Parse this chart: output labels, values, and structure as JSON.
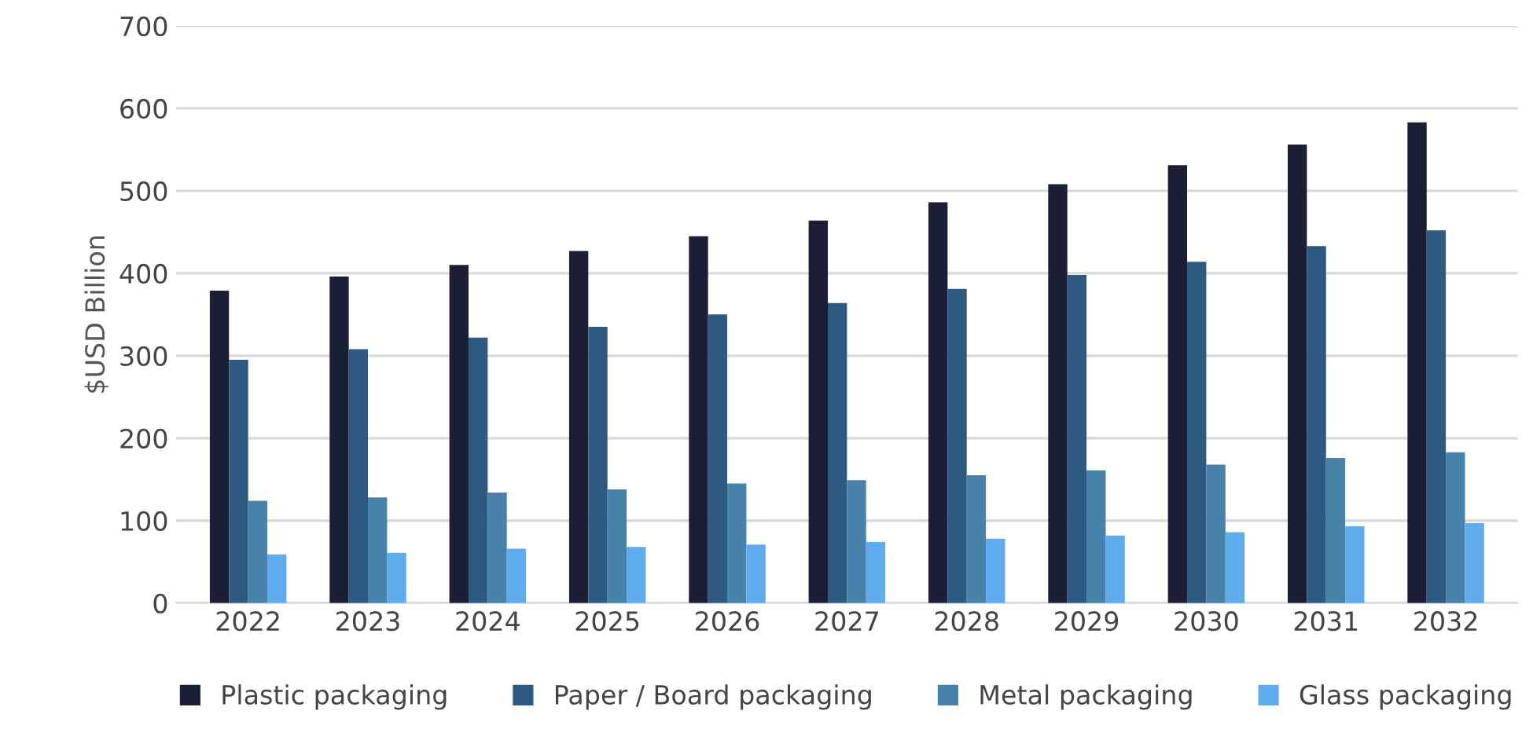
{
  "chart_data": {
    "type": "bar",
    "ylabel": "$USD Billion",
    "categories": [
      "2022",
      "2023",
      "2024",
      "2025",
      "2026",
      "2027",
      "2028",
      "2029",
      "2030",
      "2031",
      "2032"
    ],
    "series": [
      {
        "name": "Plastic packaging",
        "color": "#1a1f36",
        "values": [
          379,
          396,
          410,
          427,
          445,
          464,
          486,
          508,
          531,
          556,
          583
        ]
      },
      {
        "name": "Paper / Board packaging",
        "color": "#2d5a80",
        "values": [
          295,
          308,
          322,
          335,
          350,
          364,
          381,
          398,
          414,
          433,
          452
        ]
      },
      {
        "name": "Metal packaging",
        "color": "#4682a9",
        "values": [
          124,
          128,
          134,
          138,
          145,
          149,
          155,
          161,
          168,
          176,
          183
        ]
      },
      {
        "name": "Glass packaging",
        "color": "#5eacee",
        "values": [
          59,
          61,
          66,
          68,
          71,
          74,
          78,
          82,
          86,
          93,
          97
        ]
      }
    ],
    "ylim": [
      0,
      700
    ],
    "yticks": [
      0,
      100,
      200,
      300,
      400,
      500,
      600,
      700
    ],
    "grid": "y",
    "legend": "bottom"
  }
}
